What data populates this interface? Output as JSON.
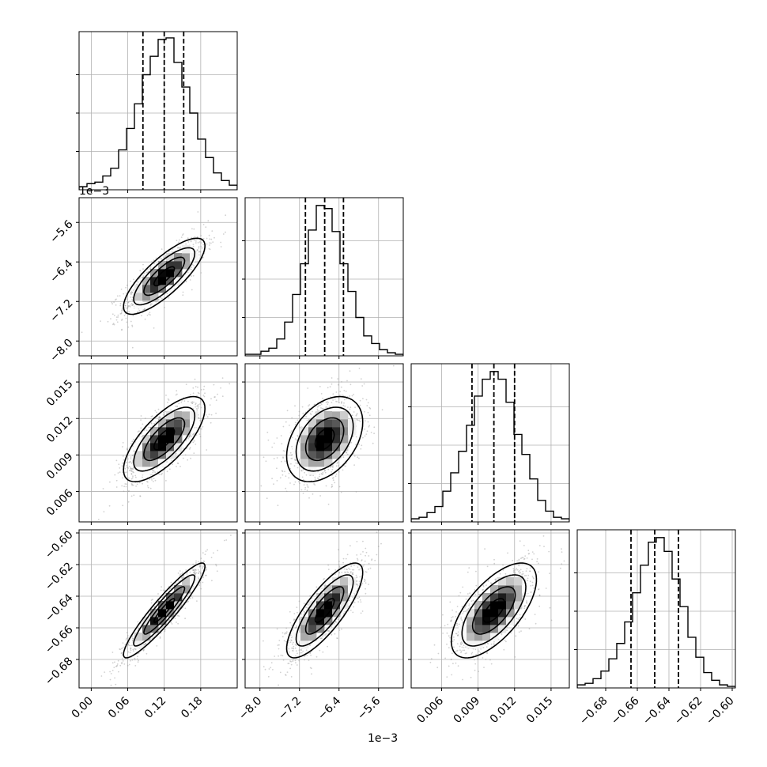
{
  "chart_data": {
    "type": "corner",
    "title": "",
    "grid": true,
    "parameters": [
      {
        "range": [
          -0.02,
          0.24
        ],
        "ticks": [
          0.0,
          0.06,
          0.12,
          0.18
        ],
        "tick_labels": [
          "0.00",
          "0.06",
          "0.12",
          "0.18"
        ],
        "quantiles": [
          0.085,
          0.12,
          0.152
        ]
      },
      {
        "range": [
          -8.3,
          -5.1
        ],
        "ticks": [
          -8.0,
          -7.2,
          -6.4,
          -5.6
        ],
        "tick_labels": [
          "−8.0",
          "−7.2",
          "−6.4",
          "−5.6"
        ],
        "quantiles": [
          -7.08,
          -6.69,
          -6.31
        ]
      },
      {
        "range": [
          0.0035,
          0.0165
        ],
        "ticks": [
          0.006,
          0.009,
          0.012,
          0.015
        ],
        "tick_labels": [
          "0.006",
          "0.009",
          "0.012",
          "0.015"
        ],
        "quantiles": [
          0.0085,
          0.0103,
          0.012
        ]
      },
      {
        "range": [
          -0.698,
          -0.598
        ],
        "ticks": [
          -0.68,
          -0.66,
          -0.64,
          -0.62,
          -0.6
        ],
        "tick_labels": [
          "−0.68",
          "−0.66",
          "−0.64",
          "−0.62",
          "−0.60"
        ],
        "quantiles": [
          -0.664,
          -0.649,
          -0.634
        ]
      }
    ],
    "offset_labels": {
      "row1_y": "1e−3",
      "col1_x": "1e−3"
    },
    "histograms": [
      [
        0.02,
        0.04,
        0.05,
        0.09,
        0.14,
        0.26,
        0.4,
        0.56,
        0.75,
        0.87,
        0.98,
        0.99,
        0.83,
        0.67,
        0.5,
        0.33,
        0.21,
        0.11,
        0.06,
        0.03
      ],
      [
        0.01,
        0.01,
        0.03,
        0.05,
        0.11,
        0.22,
        0.4,
        0.6,
        0.82,
        0.98,
        0.96,
        0.81,
        0.6,
        0.42,
        0.25,
        0.13,
        0.08,
        0.04,
        0.02,
        0.01
      ],
      [
        0.02,
        0.03,
        0.06,
        0.1,
        0.2,
        0.32,
        0.46,
        0.63,
        0.82,
        0.93,
        0.98,
        0.93,
        0.78,
        0.57,
        0.44,
        0.28,
        0.14,
        0.07,
        0.03,
        0.02
      ],
      [
        0.02,
        0.03,
        0.06,
        0.11,
        0.19,
        0.29,
        0.43,
        0.62,
        0.8,
        0.95,
        0.98,
        0.89,
        0.71,
        0.53,
        0.33,
        0.2,
        0.1,
        0.05,
        0.02,
        0.01
      ]
    ],
    "correlations": [
      [
        1.0,
        0.8,
        0.72,
        0.93
      ],
      [
        0.8,
        1.0,
        0.4,
        0.8
      ],
      [
        0.72,
        0.4,
        1.0,
        0.65
      ],
      [
        0.93,
        0.8,
        0.65,
        1.0
      ]
    ]
  }
}
